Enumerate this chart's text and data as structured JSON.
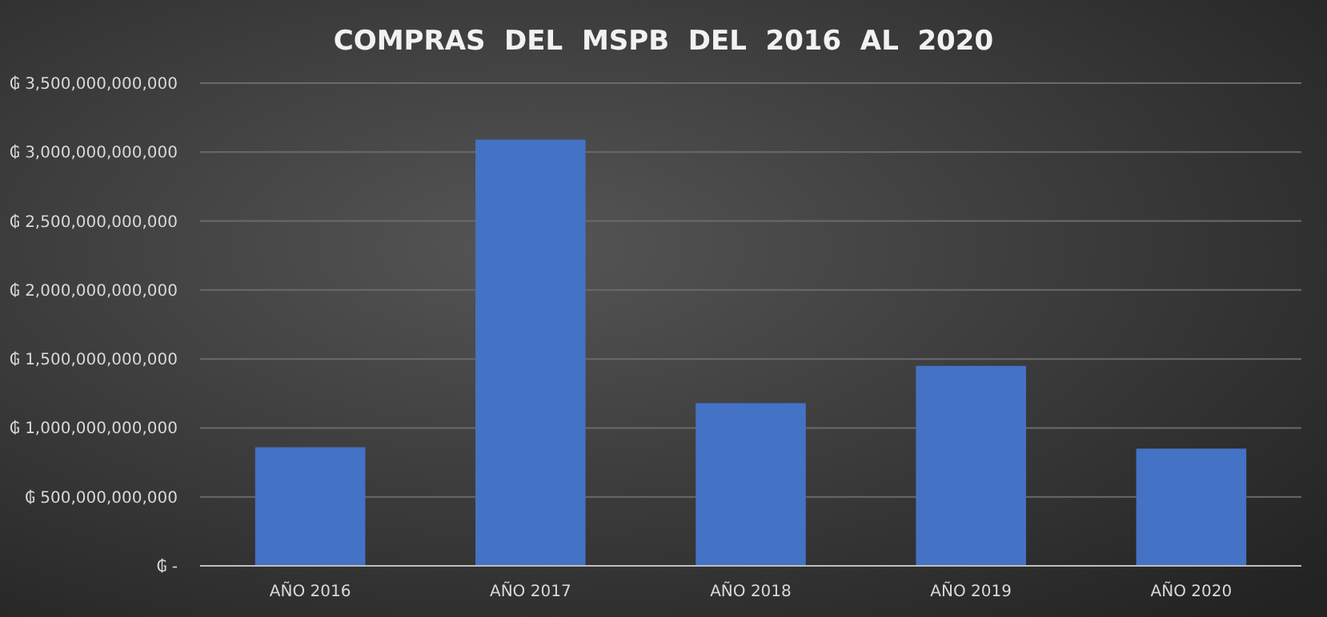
{
  "chart_data": {
    "type": "bar",
    "title": "COMPRAS  DEL  MSPB  DEL  2016  AL  2020",
    "categories": [
      "AÑO 2016",
      "AÑO 2017",
      "AÑO 2018",
      "AÑO 2019",
      "AÑO 2020"
    ],
    "values": [
      860000000000,
      3090000000000,
      1180000000000,
      1450000000000,
      850000000000
    ],
    "color": "#4472c4",
    "ylim": [
      0,
      3500000000000
    ],
    "yticks": [
      {
        "value": 0,
        "label": "₲ -"
      },
      {
        "value": 500000000000,
        "label": "₲ 500,000,000,000"
      },
      {
        "value": 1000000000000,
        "label": "₲ 1,000,000,000,000"
      },
      {
        "value": 1500000000000,
        "label": "₲ 1,500,000,000,000"
      },
      {
        "value": 2000000000000,
        "label": "₲ 2,000,000,000,000"
      },
      {
        "value": 2500000000000,
        "label": "₲ 2,500,000,000,000"
      },
      {
        "value": 3000000000000,
        "label": "₲ 3,000,000,000,000"
      },
      {
        "value": 3500000000000,
        "label": "₲ 3,500,000,000,000"
      }
    ],
    "grid": "y"
  }
}
